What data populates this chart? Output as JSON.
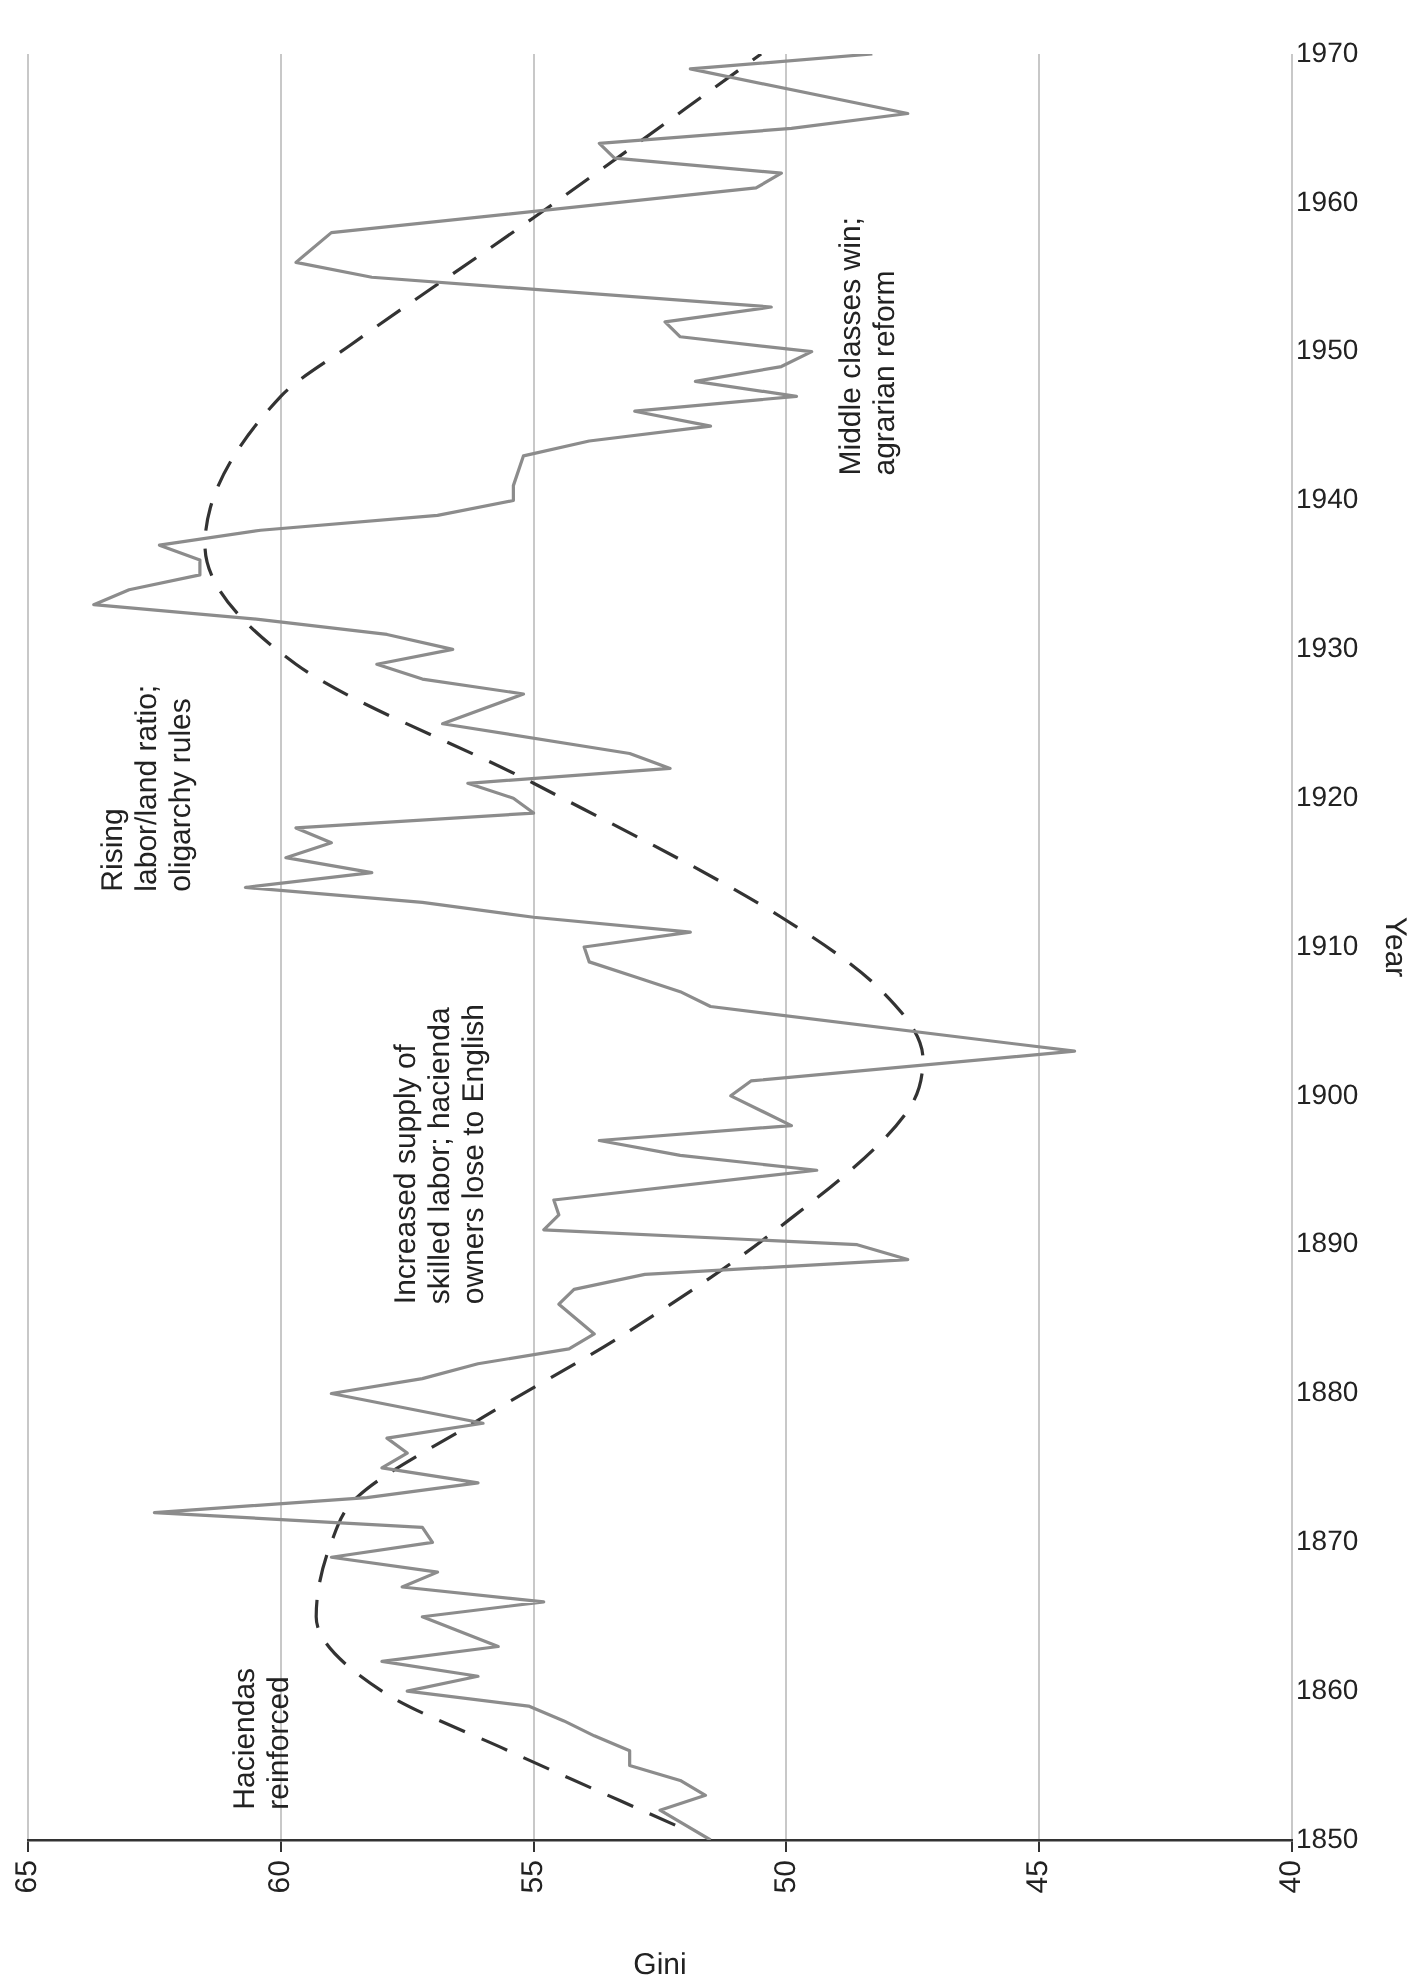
{
  "chart_data": {
    "type": "line",
    "xlabel": "Gini",
    "ylabel": "Year",
    "xlim": [
      65,
      40
    ],
    "xticks": [
      65,
      60,
      55,
      50,
      45,
      40
    ],
    "ylim": [
      1850,
      1970
    ],
    "yticks": [
      1850,
      1860,
      1870,
      1880,
      1890,
      1900,
      1910,
      1920,
      1930,
      1940,
      1950,
      1960,
      1970
    ],
    "grid": "x",
    "legend": false,
    "marker": "none",
    "series": [
      {
        "color": "#8c8c8c",
        "line_style": "solid",
        "x": [
          51.5,
          52.5,
          51.6,
          52.1,
          53.1,
          53.1,
          53.8,
          54.4,
          55.1,
          57.5,
          56.1,
          58.0,
          55.7,
          57.2,
          54.8,
          57.6,
          56.9,
          59.0,
          57.0,
          57.2,
          62.5,
          58.3,
          56.1,
          58.0,
          57.5,
          57.9,
          56.0,
          59.0,
          57.2,
          56.1,
          54.3,
          53.8,
          54.5,
          54.2,
          52.8,
          47.6,
          48.6,
          54.8,
          54.5,
          54.6,
          49.4,
          52.1,
          53.7,
          49.9,
          50.5,
          51.1,
          50.7,
          44.3,
          51.5,
          52.1,
          53.0,
          53.9,
          54.0,
          51.9,
          55.0,
          57.2,
          60.7,
          58.2,
          59.9,
          59.0,
          59.7,
          55.0,
          55.4,
          56.3,
          52.3,
          53.1,
          56.8,
          55.2,
          57.2,
          58.1,
          56.6,
          57.9,
          60.4,
          63.7,
          63.0,
          61.6,
          61.6,
          62.4,
          60.4,
          56.9,
          55.4,
          55.4,
          55.2,
          53.9,
          51.5,
          53.0,
          49.8,
          51.8,
          50.1,
          49.5,
          52.1,
          52.4,
          50.3,
          58.2,
          59.7,
          59.0,
          50.6,
          50.1,
          53.4,
          53.7,
          49.9,
          47.6,
          51.9,
          48.3
        ],
        "values": [
          1850,
          1852,
          1853,
          1854,
          1855,
          1856,
          1857,
          1858,
          1859,
          1860,
          1861,
          1862,
          1863,
          1865,
          1866,
          1867,
          1868,
          1869,
          1870,
          1871,
          1872,
          1873,
          1874,
          1875,
          1876,
          1877,
          1878,
          1880,
          1881,
          1882,
          1883,
          1884,
          1886,
          1887,
          1888,
          1889,
          1890,
          1891,
          1892,
          1893,
          1895,
          1896,
          1897,
          1898,
          1899,
          1900,
          1901,
          1903,
          1906,
          1907,
          1908,
          1909,
          1910,
          1911,
          1912,
          1913,
          1914,
          1915,
          1916,
          1917,
          1918,
          1919,
          1920,
          1921,
          1922,
          1923,
          1925,
          1927,
          1928,
          1929,
          1930,
          1931,
          1932,
          1933,
          1934,
          1935,
          1936,
          1937,
          1938,
          1939,
          1940,
          1941,
          1943,
          1944,
          1945,
          1946,
          1947,
          1948,
          1949,
          1950,
          1951,
          1952,
          1953,
          1955,
          1956,
          1958,
          1961,
          1962,
          1963,
          1964,
          1965,
          1966,
          1969,
          1970
        ]
      },
      {
        "type": "line",
        "color": "#333333",
        "line_style": "dashed",
        "x": [
          52.2,
          55.5,
          58.0,
          59.3,
          59.0,
          58.5,
          56.2,
          53.2,
          50.2,
          47.6,
          47.3,
          48.1,
          50.1,
          55.0,
          59.7,
          61.5,
          60.0,
          58.6,
          55.0,
          50.5
        ],
        "values": [
          1851,
          1856,
          1860,
          1865,
          1870,
          1873,
          1878,
          1884,
          1891,
          1899,
          1902.5,
          1907,
          1912,
          1921,
          1929,
          1937,
          1947,
          1950.5,
          1959,
          1970
        ]
      }
    ],
    "annotations": [
      "Haciendas\nreinforced",
      "Increased supply of\nskilled labor; hacienda\nowners lose to English",
      "Rising\nlabor/land ratio;\noligarchy rules",
      "Middle classes win;\nagrarian reform"
    ]
  }
}
